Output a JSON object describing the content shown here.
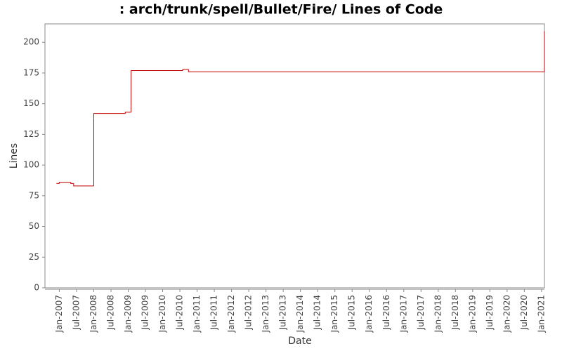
{
  "chart_data": {
    "type": "step",
    "title": ": arch/trunk/spell/Bullet/Fire/ Lines of Code",
    "x_label": "Date",
    "y_label": "Lines",
    "x": [
      "2006-12",
      "2007-01",
      "2007-05",
      "2007-06",
      "2008-01",
      "2008-01",
      "2008-12",
      "2009-02",
      "2009-02",
      "2010-08",
      "2010-10",
      "2021-02"
    ],
    "values": [
      85,
      86,
      85,
      83,
      138,
      142,
      143,
      148,
      177,
      178,
      176,
      209
    ],
    "color": "#c00000",
    "xlim": [
      "2006-08",
      "2021-02"
    ],
    "xticks": [
      {
        "value": "2007-01",
        "label": "Jan-2007"
      },
      {
        "value": "2007-07",
        "label": "Jul-2007"
      },
      {
        "value": "2008-01",
        "label": "Jan-2008"
      },
      {
        "value": "2008-07",
        "label": "Jul-2008"
      },
      {
        "value": "2009-01",
        "label": "Jan-2009"
      },
      {
        "value": "2009-07",
        "label": "Jul-2009"
      },
      {
        "value": "2010-01",
        "label": "Jan-2010"
      },
      {
        "value": "2010-07",
        "label": "Jul-2010"
      },
      {
        "value": "2011-01",
        "label": "Jan-2011"
      },
      {
        "value": "2011-07",
        "label": "Jul-2011"
      },
      {
        "value": "2012-01",
        "label": "Jan-2012"
      },
      {
        "value": "2012-07",
        "label": "Jul-2012"
      },
      {
        "value": "2013-01",
        "label": "Jan-2013"
      },
      {
        "value": "2013-07",
        "label": "Jul-2013"
      },
      {
        "value": "2014-01",
        "label": "Jan-2014"
      },
      {
        "value": "2014-07",
        "label": "Jul-2014"
      },
      {
        "value": "2015-01",
        "label": "Jan-2015"
      },
      {
        "value": "2015-07",
        "label": "Jul-2015"
      },
      {
        "value": "2016-01",
        "label": "Jan-2016"
      },
      {
        "value": "2016-07",
        "label": "Jul-2016"
      },
      {
        "value": "2017-01",
        "label": "Jan-2017"
      },
      {
        "value": "2017-07",
        "label": "Jul-2017"
      },
      {
        "value": "2018-01",
        "label": "Jan-2018"
      },
      {
        "value": "2018-07",
        "label": "Jul-2018"
      },
      {
        "value": "2019-01",
        "label": "Jan-2019"
      },
      {
        "value": "2019-07",
        "label": "Jul-2019"
      },
      {
        "value": "2020-01",
        "label": "Jan-2020"
      },
      {
        "value": "2020-07",
        "label": "Jul-2020"
      },
      {
        "value": "2021-01",
        "label": "Jan-2021"
      }
    ],
    "ylim": [
      0,
      215
    ],
    "yticks": [
      0,
      25,
      50,
      75,
      100,
      125,
      150,
      175,
      200
    ],
    "grid": false
  }
}
